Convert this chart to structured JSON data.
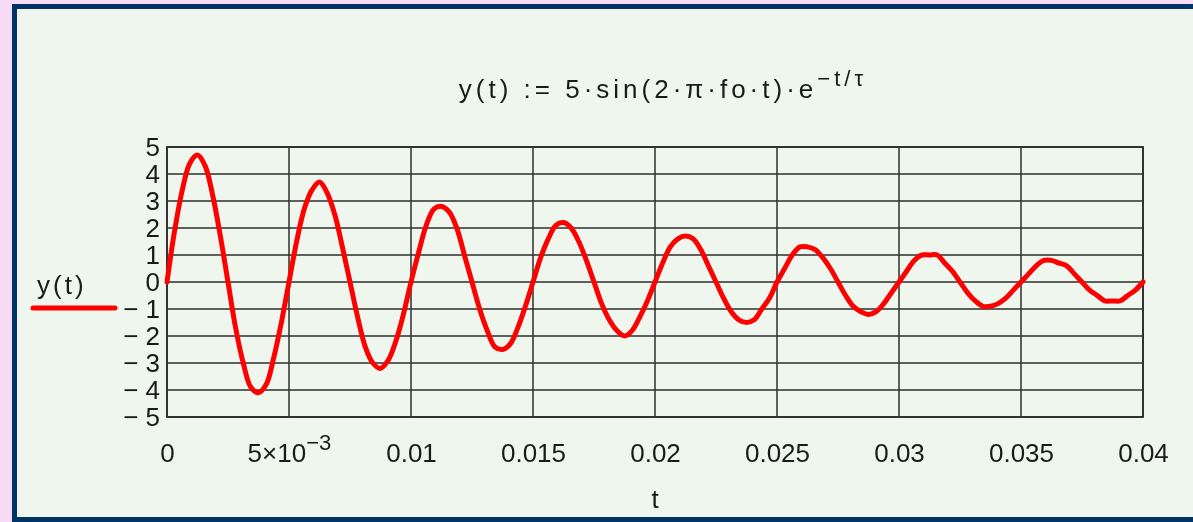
{
  "chart_data": {
    "type": "line",
    "title": "y(t) := 5·sin(2·π·fo·t)·e$^{−t/τ}$",
    "xlabel": "t",
    "xlim": [
      0,
      0.04
    ],
    "xticks": [
      0,
      {
        "value": 0.005,
        "label": "5×10$^{−3}$"
      },
      0.01,
      0.015,
      0.02,
      0.025,
      0.03,
      0.035,
      0.04
    ],
    "ylim": [
      -5,
      5
    ],
    "yticks": [
      {
        "value": -5,
        "label": "− 5"
      },
      {
        "value": -4,
        "label": "− 4"
      },
      {
        "value": -3,
        "label": "− 3"
      },
      {
        "value": -2,
        "label": "− 2"
      },
      {
        "value": -1,
        "label": "− 1"
      },
      0,
      1,
      2,
      3,
      4,
      5
    ],
    "grid": true,
    "legend": "left",
    "x": [
      0,
      0.0003125,
      0.000625,
      0.0009375,
      0.00125,
      0.0015625,
      0.001875,
      0.0021875,
      0.0025,
      0.0028125,
      0.003125,
      0.0034375,
      0.00375,
      0.0040625,
      0.004375,
      0.0046875,
      0.005,
      0.0053125,
      0.005625,
      0.0059375,
      0.00625,
      0.0065625,
      0.006875,
      0.0071875,
      0.0075,
      0.0078125,
      0.008125,
      0.0084375,
      0.00875,
      0.0090625,
      0.009375,
      0.0096875,
      0.01,
      0.0103125,
      0.010625,
      0.0109375,
      0.01125,
      0.0115625,
      0.011875,
      0.0121875,
      0.0125,
      0.0128125,
      0.013125,
      0.0134375,
      0.01375,
      0.0140625,
      0.014375,
      0.0146875,
      0.015,
      0.0153125,
      0.015625,
      0.0159375,
      0.01625,
      0.0165625,
      0.016875,
      0.0171875,
      0.0175,
      0.0178125,
      0.018125,
      0.0184375,
      0.01875,
      0.0190625,
      0.019375,
      0.0196875,
      0.02,
      0.0203125,
      0.020625,
      0.0209375,
      0.02125,
      0.0215625,
      0.021875,
      0.0221875,
      0.0225,
      0.0228125,
      0.023125,
      0.0234375,
      0.02375,
      0.0240625,
      0.024375,
      0.0246875,
      0.025,
      0.0253125,
      0.025625,
      0.0259375,
      0.02625,
      0.0265625,
      0.026875,
      0.0271875,
      0.0275,
      0.0278125,
      0.028125,
      0.0284375,
      0.02875,
      0.0290625,
      0.029375,
      0.0296875,
      0.03,
      0.0303125,
      0.030625,
      0.0309375,
      0.03125,
      0.0315625,
      0.031875,
      0.0321875,
      0.0325,
      0.0328125,
      0.033125,
      0.0334375,
      0.03375,
      0.0340625,
      0.034375,
      0.0346875,
      0.035,
      0.0353125,
      0.035625,
      0.0359375,
      0.03625,
      0.0365625,
      0.036875,
      0.0371875,
      0.0375,
      0.0378125,
      0.038125,
      0.0384375,
      0.03875,
      0.0390625,
      0.039375,
      0.0396875,
      0.04
    ],
    "series": [
      {
        "name": "y(t)",
        "color": "#ff0000",
        "values": [
          0,
          1.9,
          3.4,
          4.4,
          4.7,
          4.3,
          3.2,
          1.7,
          0,
          -1.7,
          -3.0,
          -3.9,
          -4.1,
          -3.8,
          -2.8,
          -1.5,
          0,
          1.5,
          2.7,
          3.4,
          3.7,
          3.3,
          2.5,
          1.3,
          0,
          -1.3,
          -2.4,
          -3.0,
          -3.2,
          -2.9,
          -2.2,
          -1.2,
          0,
          1.1,
          2.1,
          2.7,
          2.8,
          2.6,
          2.0,
          1.0,
          0,
          -1.0,
          -1.8,
          -2.4,
          -2.5,
          -2.3,
          -1.7,
          -0.9,
          0,
          0.9,
          1.6,
          2.1,
          2.2,
          2.0,
          1.5,
          0.8,
          0,
          -0.8,
          -1.4,
          -1.8,
          -2.0,
          -1.8,
          -1.3,
          -0.7,
          0,
          0.7,
          1.3,
          1.6,
          1.7,
          1.6,
          1.2,
          0.6,
          0,
          -0.6,
          -1.1,
          -1.4,
          -1.5,
          -1.4,
          -1.0,
          -0.6,
          0,
          0.5,
          1.0,
          1.3,
          1.3,
          1.2,
          0.9,
          0.5,
          0,
          -0.5,
          -0.9,
          -1.1,
          -1.2,
          -1.1,
          -0.8,
          -0.4,
          0,
          0.4,
          0.8,
          1.0,
          1.0,
          1.0,
          0.7,
          0.4,
          0,
          -0.4,
          -0.7,
          -0.9,
          -0.9,
          -0.8,
          -0.6,
          -0.3,
          0,
          0.3,
          0.6,
          0.8,
          0.8,
          0.7,
          0.6,
          0.3,
          0,
          -0.3,
          -0.5,
          -0.7,
          -0.7,
          -0.7,
          -0.5,
          -0.3,
          0
        ]
      }
    ]
  }
}
